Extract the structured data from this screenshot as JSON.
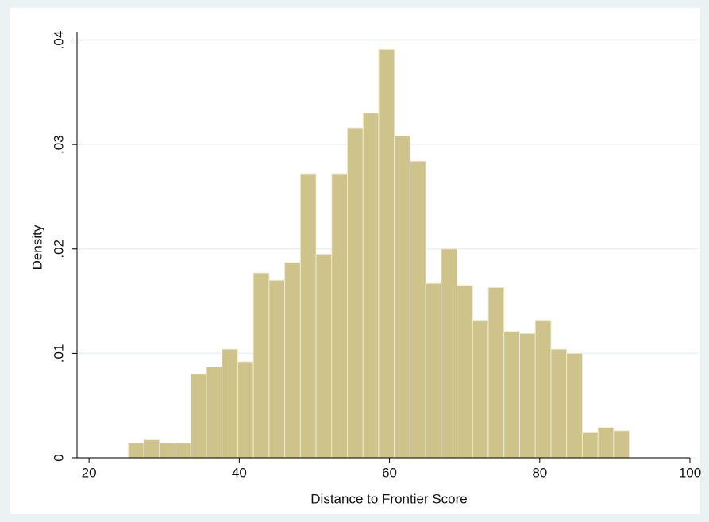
{
  "chart_data": {
    "type": "histogram",
    "xlabel": "Distance to Frontier Score",
    "ylabel": "Density",
    "bins": [
      25.2,
      27.29,
      29.37,
      31.46,
      33.54,
      35.63,
      37.71,
      39.8,
      41.88,
      43.97,
      46.05,
      48.14,
      50.22,
      52.31,
      54.39,
      56.48,
      58.56,
      60.65,
      62.73,
      64.82,
      66.9,
      68.99,
      71.07,
      73.16,
      75.24,
      77.33,
      79.41,
      81.5,
      83.58,
      85.67,
      87.75,
      89.84,
      91.92
    ],
    "values": [
      0.0014,
      0.0017,
      0.0014,
      0.0014,
      0.008,
      0.0087,
      0.0104,
      0.0092,
      0.0177,
      0.017,
      0.0187,
      0.0272,
      0.0195,
      0.0272,
      0.0316,
      0.033,
      0.0391,
      0.0308,
      0.0284,
      0.0167,
      0.02,
      0.0165,
      0.0131,
      0.0163,
      0.0121,
      0.0119,
      0.0131,
      0.0104,
      0.01,
      0.0024,
      0.0029,
      0.0026
    ],
    "color": "#cdc38b",
    "xlim": [
      18.4,
      100
    ],
    "ylim": [
      0,
      0.0408
    ],
    "xticks": [
      20,
      40,
      60,
      80,
      100
    ],
    "yticks": [
      0,
      {
        "value": 0.01,
        "label": ".01"
      },
      {
        "value": 0.02,
        "label": ".02"
      },
      {
        "value": 0.03,
        "label": ".03"
      },
      {
        "value": 0.04,
        "label": ".04"
      }
    ],
    "grid": true
  }
}
